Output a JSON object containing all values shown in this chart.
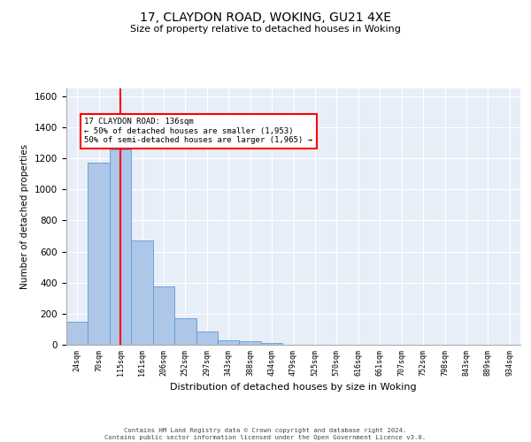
{
  "title": "17, CLAYDON ROAD, WOKING, GU21 4XE",
  "subtitle": "Size of property relative to detached houses in Woking",
  "xlabel": "Distribution of detached houses by size in Woking",
  "ylabel": "Number of detached properties",
  "bar_labels": [
    "24sqm",
    "70sqm",
    "115sqm",
    "161sqm",
    "206sqm",
    "252sqm",
    "297sqm",
    "343sqm",
    "388sqm",
    "434sqm",
    "479sqm",
    "525sqm",
    "570sqm",
    "616sqm",
    "661sqm",
    "707sqm",
    "752sqm",
    "798sqm",
    "843sqm",
    "889sqm",
    "934sqm"
  ],
  "bar_values": [
    150,
    1170,
    1260,
    670,
    375,
    170,
    85,
    30,
    20,
    12,
    0,
    0,
    0,
    0,
    0,
    0,
    0,
    0,
    0,
    0,
    0
  ],
  "bar_color": "#aec6e8",
  "bar_edge_color": "#5b9bd5",
  "background_color": "#e8eef8",
  "grid_color": "#ffffff",
  "vline_x_idx": 2,
  "vline_color": "red",
  "annotation_text": "17 CLAYDON ROAD: 136sqm\n← 50% of detached houses are smaller (1,953)\n50% of semi-detached houses are larger (1,965) →",
  "annotation_box_color": "white",
  "annotation_box_edge": "red",
  "ylim": [
    0,
    1650
  ],
  "yticks": [
    0,
    200,
    400,
    600,
    800,
    1000,
    1200,
    1400,
    1600
  ],
  "footer": "Contains HM Land Registry data © Crown copyright and database right 2024.\nContains public sector information licensed under the Open Government Licence v3.0."
}
